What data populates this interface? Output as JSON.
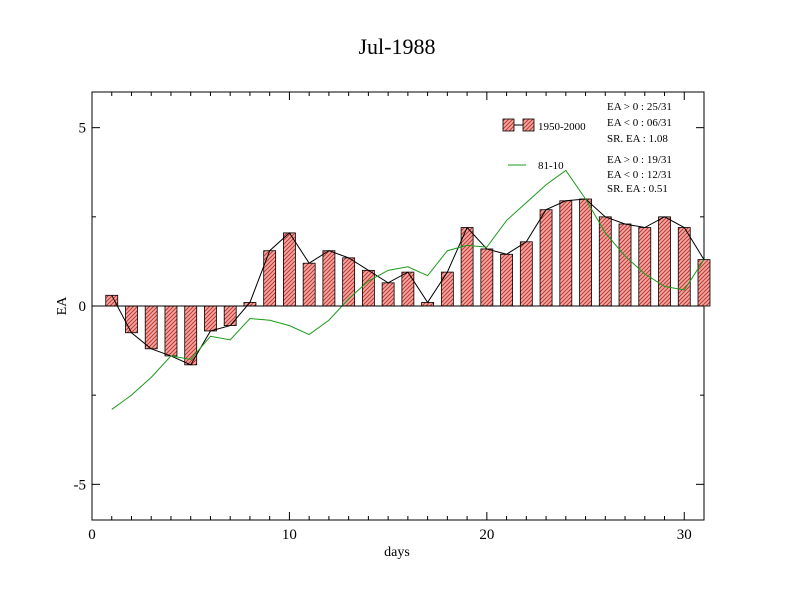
{
  "colors": {
    "bar_fill": "#f08a8a",
    "bar_hatch": "#c0392b",
    "bar_outline": "#000000",
    "clim_line": "#1a9a1a",
    "actual_line": "#000000",
    "axis": "#000000"
  },
  "chart_data": {
    "type": "bar",
    "title": "Jul-1988",
    "xlabel": "days",
    "ylabel": "EA",
    "xlim": [
      0,
      31
    ],
    "ylim": [
      -6,
      6
    ],
    "x_ticks": [
      0,
      10,
      20,
      30
    ],
    "x_tick_labels": [
      "0",
      "10",
      "20",
      "30"
    ],
    "y_ticks": [
      -5,
      0,
      5
    ],
    "y_tick_labels": [
      "-5",
      "0",
      "5"
    ],
    "grid": false,
    "legend_position": "top-right",
    "x": [
      1,
      2,
      3,
      4,
      5,
      6,
      7,
      8,
      9,
      10,
      11,
      12,
      13,
      14,
      15,
      16,
      17,
      18,
      19,
      20,
      21,
      22,
      23,
      24,
      25,
      26,
      27,
      28,
      29,
      30,
      31
    ],
    "series": [
      {
        "name": "1950-2000",
        "type": "bar",
        "values": [
          0.3,
          -0.75,
          -1.2,
          -1.4,
          -1.65,
          -0.7,
          -0.55,
          0.1,
          1.55,
          2.05,
          1.2,
          1.55,
          1.35,
          1.0,
          0.65,
          0.95,
          0.1,
          0.95,
          2.2,
          1.6,
          1.45,
          1.8,
          2.7,
          2.95,
          3.0,
          2.5,
          2.3,
          2.2,
          2.5,
          2.2,
          1.3
        ]
      },
      {
        "name": "81-10",
        "type": "line",
        "values": [
          -2.9,
          -2.5,
          -2.0,
          -1.4,
          -1.5,
          -0.85,
          -0.95,
          -0.35,
          -0.4,
          -0.55,
          -0.8,
          -0.4,
          0.2,
          0.7,
          1.0,
          1.1,
          0.85,
          1.55,
          1.7,
          1.65,
          2.4,
          2.9,
          3.4,
          3.8,
          3.0,
          2.05,
          1.4,
          0.9,
          0.55,
          0.45,
          1.3
        ]
      }
    ],
    "stats": [
      {
        "series": "1950-2000",
        "lines": [
          "EA > 0 : 25/31",
          "EA < 0 : 06/31",
          "SR. EA :  1.08"
        ]
      },
      {
        "series": "81-10",
        "lines": [
          "EA > 0 : 19/31",
          "EA < 0 : 12/31",
          "SR. EA :  0.51"
        ]
      }
    ]
  }
}
